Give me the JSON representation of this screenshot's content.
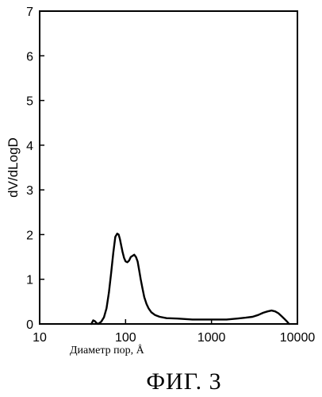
{
  "chart_data": {
    "type": "line",
    "title": "",
    "xlabel": "Диаметр пор, Å",
    "ylabel": "dV/dLogD",
    "x_scale": "log",
    "xlim": [
      10,
      10000
    ],
    "ylim": [
      0,
      7
    ],
    "x_ticks": [
      10,
      100,
      1000,
      10000
    ],
    "x_tick_labels": [
      "10",
      "100",
      "1000",
      "10000"
    ],
    "y_ticks": [
      0,
      1,
      2,
      3,
      4,
      5,
      6,
      7
    ],
    "y_tick_labels": [
      "0",
      "1",
      "2",
      "3",
      "4",
      "5",
      "6",
      "7"
    ],
    "grid": false,
    "series": [
      {
        "name": "",
        "x": [
          40,
          42,
          44,
          46,
          48,
          52,
          56,
          60,
          64,
          68,
          72,
          76,
          80,
          83,
          86,
          89,
          92,
          96,
          100,
          105,
          110,
          115,
          120,
          126,
          132,
          138,
          144,
          150,
          157,
          165,
          175,
          185,
          200,
          220,
          250,
          300,
          400,
          600,
          1000,
          1500,
          2000,
          2500,
          3000,
          3500,
          4000,
          4500,
          5000,
          5500,
          6000,
          6500,
          7000,
          7500,
          8000
        ],
        "y": [
          0.0,
          0.08,
          0.06,
          0.02,
          0.0,
          0.05,
          0.15,
          0.35,
          0.7,
          1.15,
          1.6,
          1.95,
          2.02,
          2.0,
          1.9,
          1.75,
          1.62,
          1.48,
          1.4,
          1.38,
          1.42,
          1.5,
          1.52,
          1.55,
          1.5,
          1.4,
          1.2,
          1.0,
          0.8,
          0.6,
          0.45,
          0.35,
          0.26,
          0.2,
          0.16,
          0.13,
          0.12,
          0.1,
          0.1,
          0.1,
          0.12,
          0.14,
          0.16,
          0.2,
          0.25,
          0.28,
          0.3,
          0.28,
          0.24,
          0.18,
          0.12,
          0.06,
          0.0
        ]
      }
    ]
  },
  "figure": {
    "caption": "ФИГ. 3"
  }
}
